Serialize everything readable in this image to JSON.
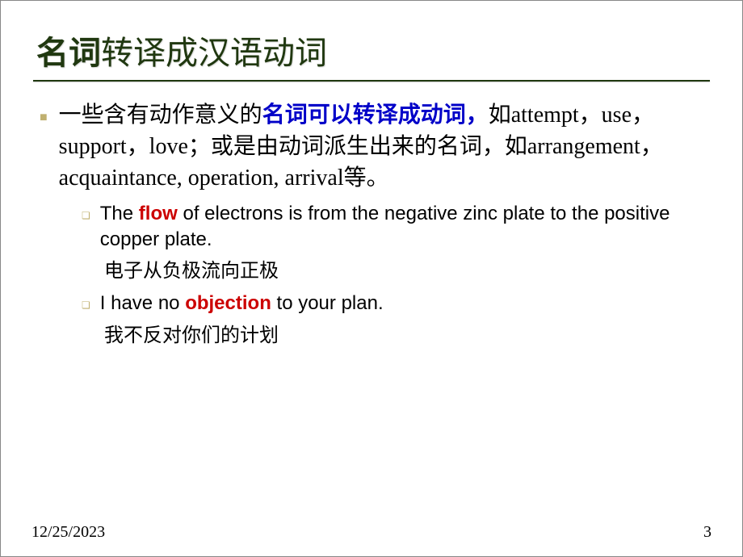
{
  "title": {
    "accent": "名词",
    "rest": "转译成汉语动词"
  },
  "bullet1": {
    "pre": "一些含有动作意义的",
    "blue": "名词可以转译成动词，",
    "post": "如attempt，use，support，love；或是由动词派生出来的名词，如arrangement，acquaintance, operation, arrival等。"
  },
  "sub1": {
    "pre": "The ",
    "red": "flow",
    "post": " of electrons is from the negative zinc plate to the positive copper plate."
  },
  "trans1": "电子从负极流向正极",
  "sub2": {
    "pre": "I have no ",
    "red": "objection",
    "post": " to your plan."
  },
  "trans2": "我不反对你们的计划",
  "footer": {
    "date": "12/25/2023",
    "page": "3"
  }
}
